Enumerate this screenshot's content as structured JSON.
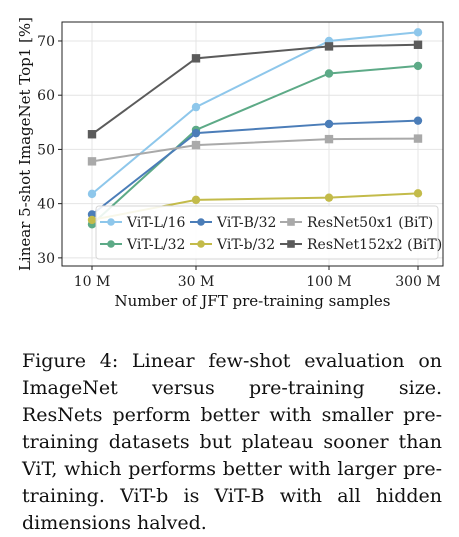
{
  "chart_data": {
    "type": "line",
    "categories": [
      "10 M",
      "30 M",
      "100 M",
      "300 M"
    ],
    "xlabel": "Number of JFT pre-training samples",
    "ylabel": "Linear 5-shot ImageNet Top1 [%]",
    "ylim": [
      28.5,
      73.5
    ],
    "yticks": [
      30,
      40,
      50,
      60,
      70
    ],
    "yticklabels": [
      "30",
      "40",
      "50",
      "60",
      "70"
    ],
    "grid": true,
    "legend_placement": "lower-right",
    "series": [
      {
        "name": "ViT-L/16",
        "color": "#8ec7eb",
        "marker": "circle",
        "values": [
          41.8,
          57.8,
          70.0,
          71.6
        ]
      },
      {
        "name": "ViT-L/32",
        "color": "#5daa87",
        "marker": "circle",
        "values": [
          36.2,
          53.6,
          64.0,
          65.4
        ]
      },
      {
        "name": "ViT-B/32",
        "color": "#4b7db8",
        "marker": "circle",
        "values": [
          38.0,
          53.0,
          54.7,
          55.3
        ]
      },
      {
        "name": "ViT-b/32",
        "color": "#c3bb4a",
        "marker": "circle",
        "values": [
          37.0,
          40.7,
          41.1,
          41.9
        ]
      },
      {
        "name": "ResNet50x1 (BiT)",
        "color": "#a9a9a9",
        "marker": "square",
        "values": [
          47.8,
          50.8,
          51.9,
          52.0
        ]
      },
      {
        "name": "ResNet152x2 (BiT)",
        "color": "#5b5b5b",
        "marker": "square",
        "values": [
          52.8,
          66.8,
          69.0,
          69.3
        ]
      }
    ]
  },
  "caption": "Figure 4: Linear few-shot evaluation on ImageNet versus pre-training size. ResNets perform better with smaller pre-training datasets but plateau sooner than ViT, which performs better with larger pre-training. ViT-b is ViT-B with all hidden dimensions halved."
}
